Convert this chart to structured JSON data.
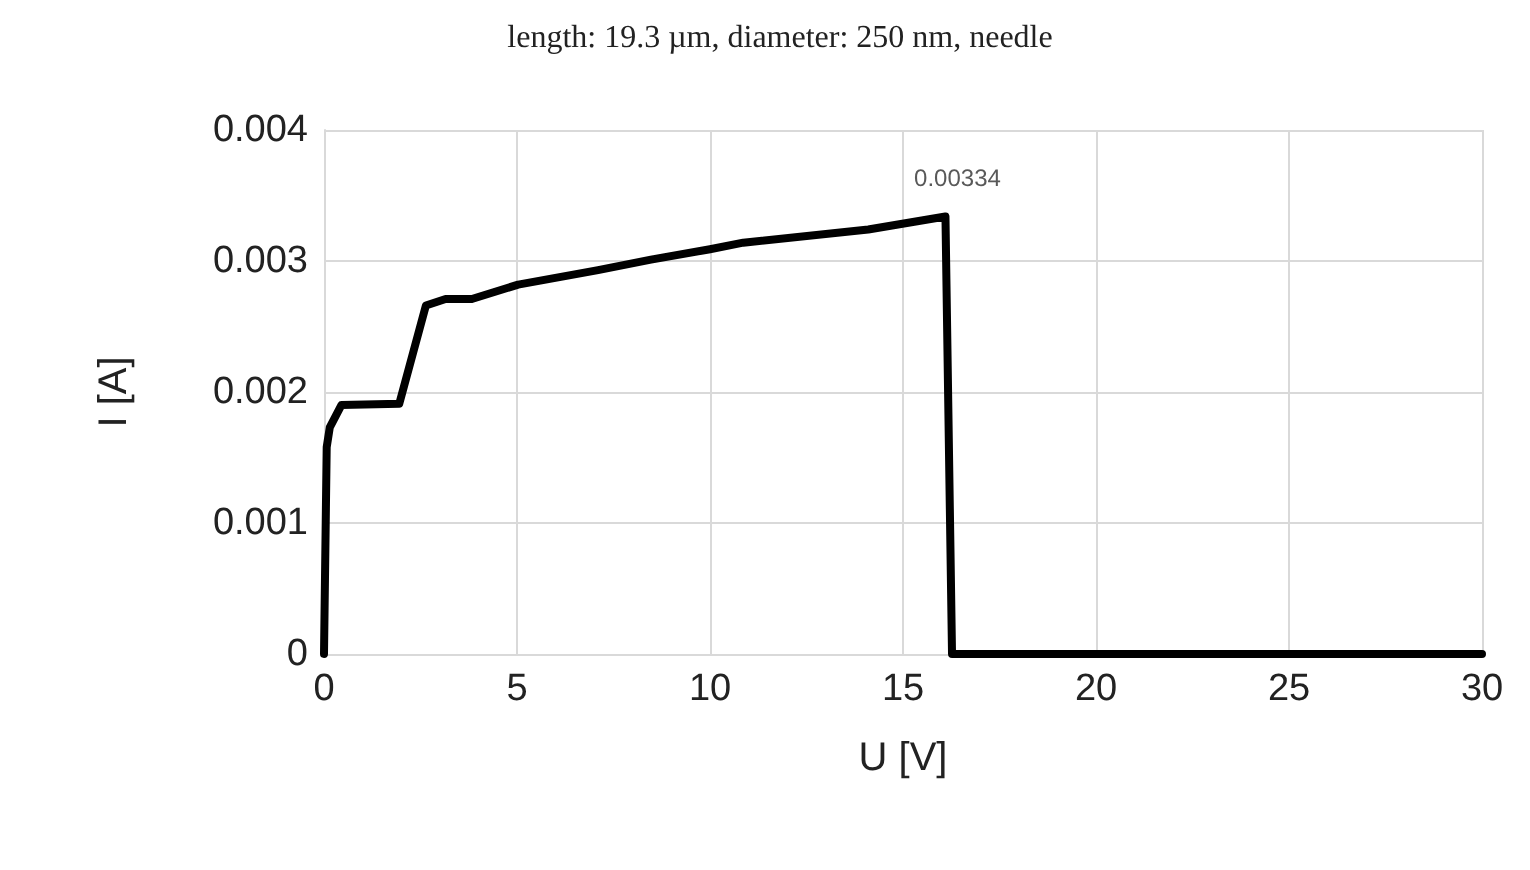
{
  "chart_data": {
    "type": "line",
    "title": "length: 19.3 µm, diameter: 250 nm, needle",
    "xlabel": "U [V]",
    "ylabel": "I [A]",
    "x": [
      0,
      0.07,
      0.15,
      0.45,
      1.95,
      2.64,
      3.15,
      3.83,
      5.03,
      7.1,
      8.47,
      10.0,
      10.86,
      14.1,
      16.1,
      16.27,
      30
    ],
    "values": [
      0,
      0.00158,
      0.00173,
      0.0019,
      0.00191,
      0.00266,
      0.00271,
      0.00271,
      0.00282,
      0.00293,
      0.00301,
      0.00309,
      0.00314,
      0.00324,
      0.00334,
      0,
      0
    ],
    "value_labels": [
      null,
      null,
      null,
      null,
      null,
      null,
      null,
      null,
      null,
      null,
      null,
      null,
      null,
      null,
      "0.00334",
      null,
      null
    ],
    "color": "#000000",
    "xlim": [
      0,
      30
    ],
    "xticks": [
      0,
      5,
      10,
      15,
      20,
      25,
      30
    ],
    "ylim": [
      0,
      0.004
    ],
    "yticks": [
      0,
      0.001,
      0.002,
      0.003,
      0.004
    ],
    "grid": true,
    "marker": "none",
    "line_style": "solid"
  }
}
